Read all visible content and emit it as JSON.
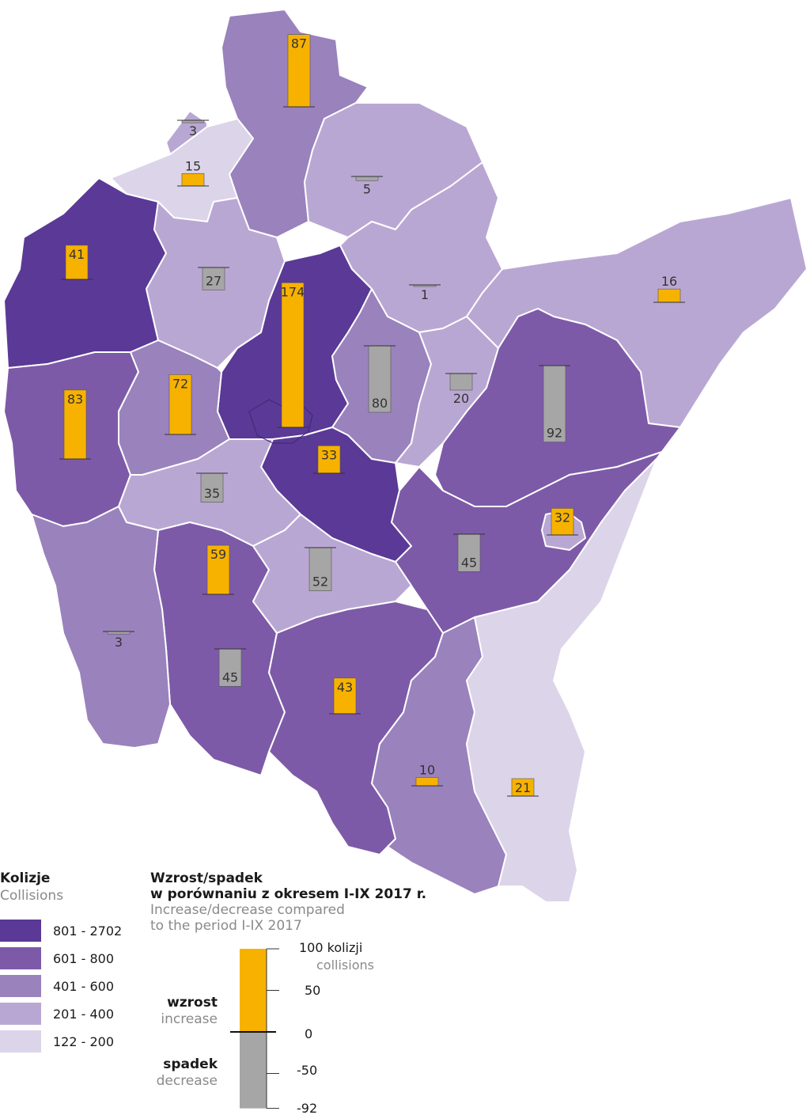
{
  "colors": {
    "class5": "#5b3996",
    "class4": "#7d5aa8",
    "class3": "#9a82bd",
    "class2": "#b9a7d3",
    "class1": "#dcd4e9",
    "increase": "#f7b200",
    "decrease": "#a6a6a6",
    "border": "#ffffff"
  },
  "legend": {
    "collisions_title": "Kolizje",
    "collisions_subtitle": "Collisions",
    "classes": [
      {
        "label": "801 - 2702",
        "color_key": "class5"
      },
      {
        "label": "601 -  800",
        "color_key": "class4"
      },
      {
        "label": "401 -  600",
        "color_key": "class3"
      },
      {
        "label": "201 -  400",
        "color_key": "class2"
      },
      {
        "label": "122 -  200",
        "color_key": "class1"
      }
    ],
    "change_title_line1": "Wzrost/spadek",
    "change_title_line2": "w porównaniu z okresem I-IX 2017 r.",
    "change_sub_line1": "Increase/decrease compared",
    "change_sub_line2": "to the period I-IX 2017",
    "scale_max_label": "100 kolizji",
    "scale_max_sub": "collisions",
    "tick_100": "100",
    "tick_50": "50",
    "tick_0": "0",
    "tick_m50": "-50",
    "tick_m92": "-92",
    "increase_label": "wzrost",
    "increase_sub": "increase",
    "decrease_label": "spadek",
    "decrease_sub": "decrease"
  },
  "districts": [
    {
      "value_class": "class3",
      "change": 87,
      "label": "87"
    },
    {
      "value_class": "class1",
      "change": 15,
      "label": "15"
    },
    {
      "value_class": "class2",
      "change": -3,
      "label": "3"
    },
    {
      "value_class": "class2",
      "change": -5,
      "label": "5"
    },
    {
      "value_class": "class5",
      "change": 41,
      "label": "41"
    },
    {
      "value_class": "class2",
      "change": -27,
      "label": "27"
    },
    {
      "value_class": "class5",
      "change": 174,
      "label": "174"
    },
    {
      "value_class": "class2",
      "change": -1,
      "label": "1"
    },
    {
      "value_class": "class2",
      "change": 16,
      "label": "16"
    },
    {
      "value_class": "class3",
      "change": -80,
      "label": "80"
    },
    {
      "value_class": "class2",
      "change": -20,
      "label": "20"
    },
    {
      "value_class": "class4",
      "change": -92,
      "label": "92"
    },
    {
      "value_class": "class4",
      "change": 83,
      "label": "83"
    },
    {
      "value_class": "class3",
      "change": 72,
      "label": "72"
    },
    {
      "value_class": "class5",
      "change": 33,
      "label": "33"
    },
    {
      "value_class": "class2",
      "change": -35,
      "label": "35"
    },
    {
      "value_class": "class4",
      "change": 32,
      "label": "32"
    },
    {
      "value_class": "class2",
      "change": -45,
      "label": "45"
    },
    {
      "value_class": "class4",
      "change": 59,
      "label": "59"
    },
    {
      "value_class": "class2",
      "change": -52,
      "label": "52"
    },
    {
      "value_class": "class3",
      "change": -3,
      "label": "3"
    },
    {
      "value_class": "class4",
      "change": -45,
      "label": "45"
    },
    {
      "value_class": "class3",
      "change": 43,
      "label": "43"
    },
    {
      "value_class": "class1",
      "change": 10,
      "label": "10"
    },
    {
      "value_class": "class1",
      "change": 21,
      "label": "21"
    }
  ]
}
